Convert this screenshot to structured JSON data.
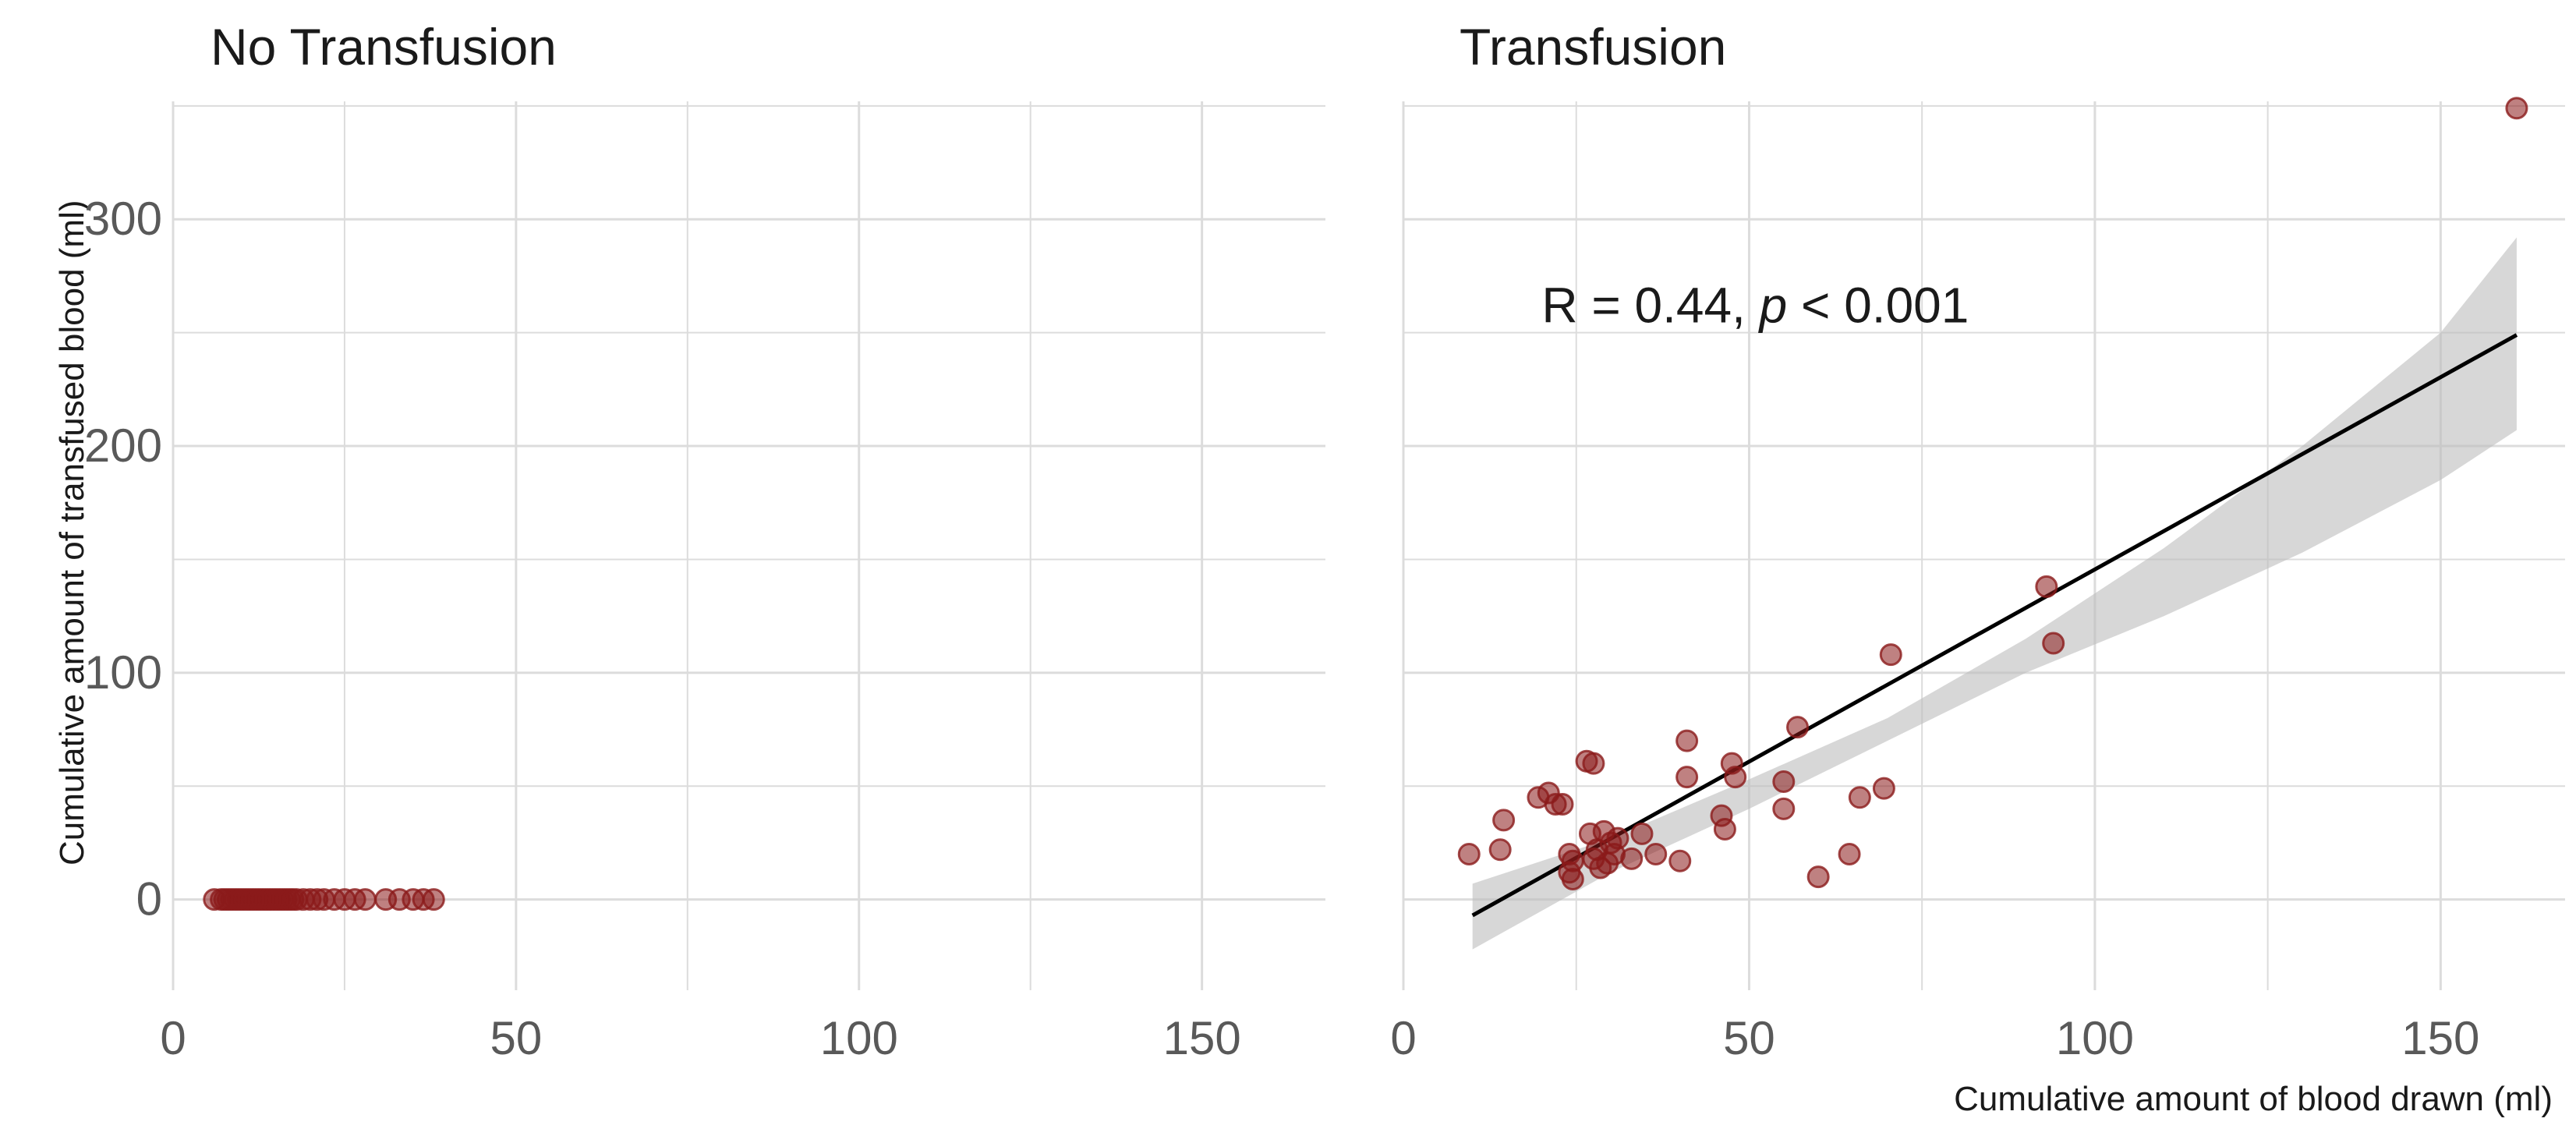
{
  "figure": {
    "ylabel": "Cumulative amount of transfused blood (ml)",
    "xlabel": "Cumulative amount of blood drawn (ml)"
  },
  "colors": {
    "point": "#8B1A1A",
    "grid": "#dcdcdc",
    "line": "#000000",
    "ribbon": "#bdbdbd",
    "tick_text": "#595959"
  },
  "chart_data": [
    {
      "type": "scatter",
      "title": "No Transfusion",
      "xlim": [
        0,
        168
      ],
      "ylim": [
        -40,
        352
      ],
      "x_ticks": [
        0,
        50,
        100,
        150
      ],
      "y_ticks": [
        0,
        100,
        200,
        300
      ],
      "grid": true,
      "points": [
        {
          "x": 6,
          "y": 0
        },
        {
          "x": 7,
          "y": 0
        },
        {
          "x": 7.5,
          "y": 0
        },
        {
          "x": 8,
          "y": 0
        },
        {
          "x": 8.5,
          "y": 0
        },
        {
          "x": 9,
          "y": 0
        },
        {
          "x": 9.5,
          "y": 0
        },
        {
          "x": 10,
          "y": 0
        },
        {
          "x": 10.5,
          "y": 0
        },
        {
          "x": 11,
          "y": 0
        },
        {
          "x": 11.5,
          "y": 0
        },
        {
          "x": 12,
          "y": 0
        },
        {
          "x": 12.5,
          "y": 0
        },
        {
          "x": 13,
          "y": 0
        },
        {
          "x": 13.5,
          "y": 0
        },
        {
          "x": 14,
          "y": 0
        },
        {
          "x": 14.5,
          "y": 0
        },
        {
          "x": 15,
          "y": 0
        },
        {
          "x": 15.5,
          "y": 0
        },
        {
          "x": 16,
          "y": 0
        },
        {
          "x": 16.5,
          "y": 0
        },
        {
          "x": 17,
          "y": 0
        },
        {
          "x": 17.5,
          "y": 0
        },
        {
          "x": 18,
          "y": 0
        },
        {
          "x": 19,
          "y": 0
        },
        {
          "x": 20,
          "y": 0
        },
        {
          "x": 21,
          "y": 0
        },
        {
          "x": 22,
          "y": 0
        },
        {
          "x": 23.5,
          "y": 0
        },
        {
          "x": 25,
          "y": 0
        },
        {
          "x": 26.5,
          "y": 0
        },
        {
          "x": 28,
          "y": 0
        },
        {
          "x": 31,
          "y": 0
        },
        {
          "x": 33,
          "y": 0
        },
        {
          "x": 35,
          "y": 0
        },
        {
          "x": 36.5,
          "y": 0
        },
        {
          "x": 38,
          "y": 0
        }
      ]
    },
    {
      "type": "scatter",
      "title": "Transfusion",
      "xlim": [
        0,
        168
      ],
      "ylim": [
        -40,
        352
      ],
      "x_ticks": [
        0,
        50,
        100,
        150
      ],
      "y_ticks": [
        0,
        100,
        200,
        300
      ],
      "grid": true,
      "annotation": {
        "prefix": "R =  0.44, ",
        "p_symbol": "p",
        "suffix": " < 0.001",
        "x": 20,
        "y": 262
      },
      "fit_line": {
        "x": [
          10,
          161
        ],
        "y": [
          -7,
          249
        ]
      },
      "confidence_band": {
        "x": [
          10,
          30,
          50,
          70,
          90,
          110,
          130,
          150,
          161
        ],
        "lower": [
          -22,
          12,
          40,
          70,
          100,
          125,
          153,
          185,
          207
        ],
        "upper": [
          7,
          27,
          53,
          80,
          115,
          155,
          200,
          250,
          292
        ]
      },
      "points": [
        {
          "x": 9.5,
          "y": 20
        },
        {
          "x": 14,
          "y": 22
        },
        {
          "x": 14.5,
          "y": 35
        },
        {
          "x": 19.5,
          "y": 45
        },
        {
          "x": 21,
          "y": 47
        },
        {
          "x": 22,
          "y": 42
        },
        {
          "x": 23,
          "y": 42
        },
        {
          "x": 24,
          "y": 20
        },
        {
          "x": 24,
          "y": 12
        },
        {
          "x": 24.5,
          "y": 17
        },
        {
          "x": 24.5,
          "y": 9
        },
        {
          "x": 26.5,
          "y": 61
        },
        {
          "x": 27,
          "y": 29
        },
        {
          "x": 27.5,
          "y": 60
        },
        {
          "x": 27.5,
          "y": 18
        },
        {
          "x": 28,
          "y": 22
        },
        {
          "x": 28.5,
          "y": 14
        },
        {
          "x": 29,
          "y": 30
        },
        {
          "x": 29.5,
          "y": 16
        },
        {
          "x": 30,
          "y": 25
        },
        {
          "x": 30.5,
          "y": 20
        },
        {
          "x": 31,
          "y": 27
        },
        {
          "x": 33,
          "y": 18
        },
        {
          "x": 34.5,
          "y": 29
        },
        {
          "x": 36.5,
          "y": 20
        },
        {
          "x": 40,
          "y": 17
        },
        {
          "x": 41,
          "y": 70
        },
        {
          "x": 41,
          "y": 54
        },
        {
          "x": 46,
          "y": 37
        },
        {
          "x": 46.5,
          "y": 31
        },
        {
          "x": 47.5,
          "y": 60
        },
        {
          "x": 48,
          "y": 54
        },
        {
          "x": 55,
          "y": 52
        },
        {
          "x": 55,
          "y": 40
        },
        {
          "x": 57,
          "y": 76
        },
        {
          "x": 60,
          "y": 10
        },
        {
          "x": 64.5,
          "y": 20
        },
        {
          "x": 66,
          "y": 45
        },
        {
          "x": 69.5,
          "y": 49
        },
        {
          "x": 70.5,
          "y": 108
        },
        {
          "x": 93,
          "y": 138
        },
        {
          "x": 94,
          "y": 113
        },
        {
          "x": 161,
          "y": 349
        }
      ]
    }
  ]
}
